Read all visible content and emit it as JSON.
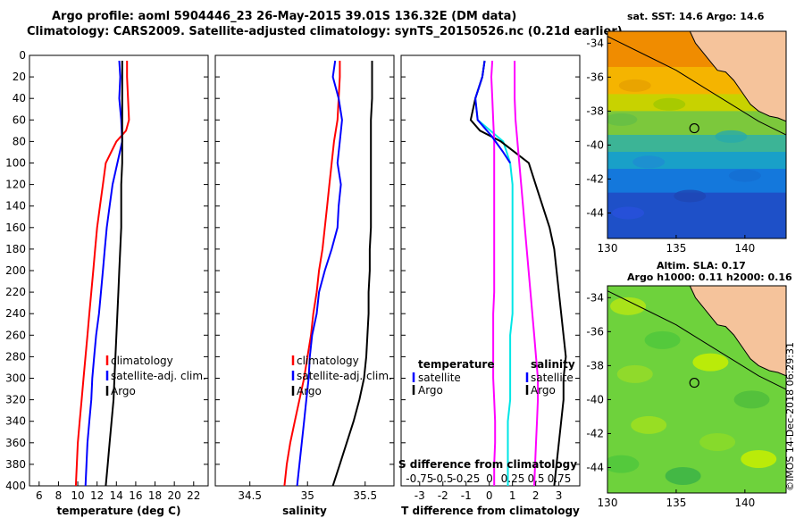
{
  "header": {
    "line1": "Argo profile: aoml 5904446_23 26-May-2015 39.01S 136.32E (DM data)",
    "line2": "Climatology: CARS2009. Satellite-adjusted climatology: synTS_20150526.nc (0.21d earlier)"
  },
  "timestamp": "©IMOS 14-Dec-2018 06:29:31",
  "colors": {
    "climatology": "#ff0000",
    "satellite": "#0000ff",
    "argo": "#000000",
    "temp_diff": "#00e6e6",
    "sal_diff": "#ff00ff"
  },
  "chart_data": [
    {
      "type": "line",
      "name": "temperature-panel",
      "xlabel": "temperature (deg C)",
      "ylabel": "",
      "xlim": [
        5,
        23.5
      ],
      "ylim": [
        400,
        0
      ],
      "xticks": [
        6,
        8,
        10,
        12,
        14,
        16,
        18,
        20,
        22
      ],
      "yticks": [
        0,
        20,
        40,
        60,
        80,
        100,
        120,
        140,
        160,
        180,
        200,
        220,
        240,
        260,
        280,
        300,
        320,
        340,
        360,
        380,
        400
      ],
      "legend": [
        "climatology",
        "satellite-adj. clim.",
        "Argo"
      ],
      "series": [
        {
          "name": "climatology",
          "depth": [
            5,
            20,
            40,
            60,
            70,
            80,
            100,
            120,
            140,
            160,
            180,
            200,
            220,
            240,
            260,
            280,
            300,
            320,
            340,
            360,
            380,
            400
          ],
          "values": [
            15.1,
            15.1,
            15.2,
            15.3,
            15.0,
            14.0,
            12.9,
            12.6,
            12.3,
            12.0,
            11.8,
            11.6,
            11.4,
            11.2,
            11.0,
            10.8,
            10.6,
            10.4,
            10.2,
            10.0,
            9.9,
            9.8
          ]
        },
        {
          "name": "satellite-adj. clim.",
          "depth": [
            5,
            20,
            40,
            60,
            80,
            100,
            120,
            140,
            160,
            180,
            200,
            220,
            240,
            260,
            280,
            300,
            320,
            340,
            360,
            380,
            400
          ],
          "values": [
            14.3,
            14.4,
            14.3,
            14.5,
            14.6,
            14.1,
            13.6,
            13.3,
            13.0,
            12.8,
            12.6,
            12.4,
            12.2,
            11.9,
            11.7,
            11.5,
            11.4,
            11.2,
            11.0,
            10.9,
            10.8
          ]
        },
        {
          "name": "Argo",
          "depth": [
            5,
            20,
            40,
            60,
            80,
            100,
            120,
            140,
            160,
            180,
            200,
            220,
            240,
            260,
            280,
            300,
            320,
            340,
            360,
            380,
            400
          ],
          "values": [
            14.6,
            14.6,
            14.6,
            14.6,
            14.6,
            14.6,
            14.5,
            14.5,
            14.5,
            14.4,
            14.3,
            14.2,
            14.1,
            14.0,
            13.9,
            13.8,
            13.7,
            13.5,
            13.3,
            13.1,
            12.9
          ]
        }
      ]
    },
    {
      "type": "line",
      "name": "salinity-panel",
      "xlabel": "salinity",
      "ylabel": "",
      "xlim": [
        34.2,
        35.75
      ],
      "ylim": [
        400,
        0
      ],
      "xticks": [
        34.5,
        35,
        35.5
      ],
      "legend": [
        "climatology",
        "satellite-adj. clim.",
        "Argo"
      ],
      "series": [
        {
          "name": "climatology",
          "depth": [
            5,
            20,
            40,
            60,
            80,
            100,
            120,
            140,
            160,
            180,
            200,
            220,
            240,
            260,
            280,
            300,
            320,
            340,
            360,
            380,
            400
          ],
          "values": [
            35.28,
            35.28,
            35.27,
            35.26,
            35.23,
            35.21,
            35.19,
            35.17,
            35.15,
            35.13,
            35.1,
            35.08,
            35.05,
            35.03,
            35.0,
            34.97,
            34.93,
            34.89,
            34.85,
            34.82,
            34.8
          ]
        },
        {
          "name": "satellite-adj. clim.",
          "depth": [
            5,
            20,
            40,
            60,
            80,
            100,
            120,
            140,
            160,
            180,
            200,
            220,
            240,
            260,
            280,
            300,
            320,
            340,
            360,
            380,
            400
          ],
          "values": [
            35.24,
            35.22,
            35.27,
            35.3,
            35.28,
            35.26,
            35.29,
            35.27,
            35.26,
            35.21,
            35.15,
            35.1,
            35.08,
            35.04,
            35.02,
            35.01,
            34.99,
            34.97,
            34.95,
            34.93,
            34.91
          ]
        },
        {
          "name": "Argo",
          "depth": [
            5,
            20,
            40,
            60,
            80,
            100,
            120,
            140,
            160,
            180,
            200,
            220,
            240,
            260,
            280,
            300,
            320,
            340,
            360,
            380,
            400
          ],
          "values": [
            35.56,
            35.56,
            35.56,
            35.55,
            35.55,
            35.55,
            35.55,
            35.55,
            35.55,
            35.54,
            35.54,
            35.53,
            35.53,
            35.52,
            35.51,
            35.49,
            35.45,
            35.4,
            35.34,
            35.28,
            35.22
          ]
        }
      ]
    },
    {
      "type": "line",
      "name": "difference-panel",
      "xlabel": "T difference from climatology",
      "top_axis_label": "S difference from climatology",
      "xlim": [
        -3.8,
        3.9
      ],
      "ylim": [
        400,
        0
      ],
      "xticks": [
        -3,
        -2,
        -1,
        0,
        1,
        2,
        3
      ],
      "xticklabels": [
        "-3",
        "-2",
        "-1",
        "0",
        "1",
        "2",
        "3"
      ],
      "sticks": [
        -0.75,
        -0.5,
        -0.25,
        0,
        0.25,
        0.5,
        0.75
      ],
      "stickslabels": [
        "-0.75",
        "-0.5",
        "-0.25",
        "0",
        "0.25",
        "0.5",
        "0.75"
      ],
      "legend_temperature": {
        "heading": "temperature",
        "items": [
          "satellite",
          "Argo"
        ]
      },
      "legend_salinity": {
        "heading": "salinity",
        "items": [
          "satellite",
          "Argo"
        ]
      },
      "series": [
        {
          "name": "temperature satellite",
          "depth": [
            5,
            20,
            40,
            60,
            80,
            100,
            120,
            140,
            160,
            180,
            200,
            220,
            240,
            260,
            280,
            300,
            320,
            340,
            360,
            380,
            400
          ],
          "values": [
            -0.2,
            -0.3,
            -0.6,
            -0.5,
            0.6,
            0.9,
            1.0,
            1.0,
            1.0,
            1.0,
            1.0,
            1.0,
            1.0,
            0.9,
            0.9,
            0.9,
            0.9,
            0.8,
            0.8,
            0.8,
            0.8
          ]
        },
        {
          "name": "temperature Argo",
          "depth": [
            5,
            20,
            40,
            60,
            70,
            80,
            100,
            120,
            140,
            160,
            180,
            200,
            220,
            240,
            260,
            280,
            300,
            320,
            340,
            360,
            380,
            400
          ],
          "values": [
            -0.2,
            -0.3,
            -0.6,
            -0.8,
            -0.4,
            0.5,
            1.7,
            2.0,
            2.3,
            2.6,
            2.8,
            2.9,
            3.0,
            3.1,
            3.2,
            3.3,
            3.2,
            3.2,
            3.1,
            3.0,
            2.9,
            2.8
          ]
        },
        {
          "name": "salinity satellite",
          "depth": [
            5,
            20,
            40,
            60,
            80,
            100,
            120,
            140,
            160,
            180,
            200,
            220,
            240,
            260,
            280,
            300,
            320,
            340,
            360,
            380,
            400
          ],
          "values": [
            0.03,
            0.02,
            0.03,
            0.04,
            0.05,
            0.05,
            0.05,
            0.05,
            0.05,
            0.05,
            0.05,
            0.05,
            0.04,
            0.04,
            0.04,
            0.04,
            0.05,
            0.06,
            0.06,
            0.05,
            0.05
          ]
        },
        {
          "name": "salinity Argo",
          "depth": [
            5,
            20,
            40,
            60,
            80,
            100,
            120,
            140,
            160,
            180,
            200,
            220,
            240,
            260,
            280,
            300,
            320,
            340,
            360,
            380,
            400
          ],
          "values": [
            0.27,
            0.27,
            0.27,
            0.28,
            0.3,
            0.32,
            0.34,
            0.36,
            0.38,
            0.4,
            0.42,
            0.44,
            0.46,
            0.48,
            0.5,
            0.52,
            0.52,
            0.51,
            0.5,
            0.49,
            0.48
          ]
        }
      ]
    },
    {
      "type": "heatmap",
      "name": "sst-map",
      "title": "sat. SST: 14.6 Argo: 14.6",
      "xticks": [
        130,
        135,
        140
      ],
      "yticks": [
        -34,
        -36,
        -38,
        -40,
        -42,
        -44
      ],
      "xlim": [
        130,
        143
      ],
      "ylim": [
        -45.5,
        -33.3
      ],
      "marker": {
        "lon": 136.32,
        "lat": -39.01
      }
    },
    {
      "type": "heatmap",
      "name": "sla-map",
      "title": "Altim. SLA: 0.17",
      "subtitle": "Argo h1000: 0.11 h2000: 0.16",
      "xticks": [
        130,
        135,
        140
      ],
      "yticks": [
        -34,
        -36,
        -38,
        -40,
        -42,
        -44
      ],
      "xlim": [
        130,
        143
      ],
      "ylim": [
        -45.5,
        -33.3
      ],
      "marker": {
        "lon": 136.32,
        "lat": -39.01
      }
    }
  ]
}
